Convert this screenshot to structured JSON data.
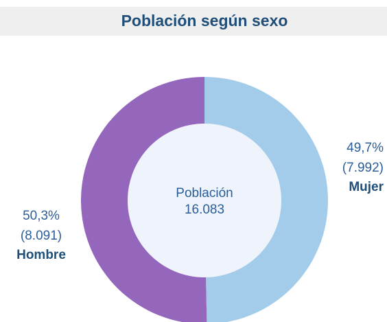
{
  "chart_data": {
    "type": "pie",
    "title": "Población según sexo",
    "categories": [
      "Mujer",
      "Hombre"
    ],
    "values": [
      49.7,
      50.3
    ],
    "value_labels": [
      "49,7%",
      "50,3%"
    ],
    "counts": [
      7992,
      8091
    ],
    "count_labels": [
      "(7.992)",
      "(8.091)"
    ],
    "colors": [
      "#a3cbea",
      "#9467bd"
    ],
    "center_label": "Población",
    "total": 16083,
    "total_label": "16.083"
  }
}
